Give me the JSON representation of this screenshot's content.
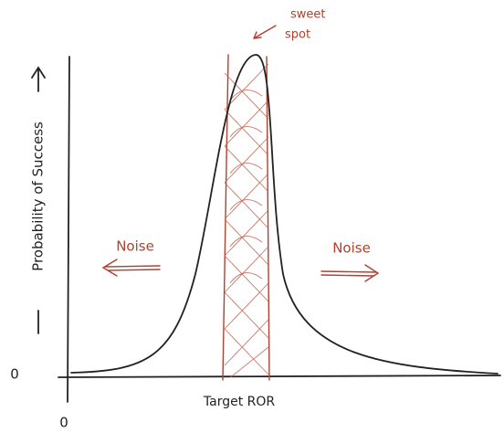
{
  "annotation": {
    "lines": [
      "sweet",
      "spot"
    ]
  },
  "noise_left": "Noise",
  "noise_right": "Noise",
  "y_axis_label": "Probability of Success",
  "x_axis_label": "Target ROR",
  "y_origin": "0",
  "x_origin": "0"
}
